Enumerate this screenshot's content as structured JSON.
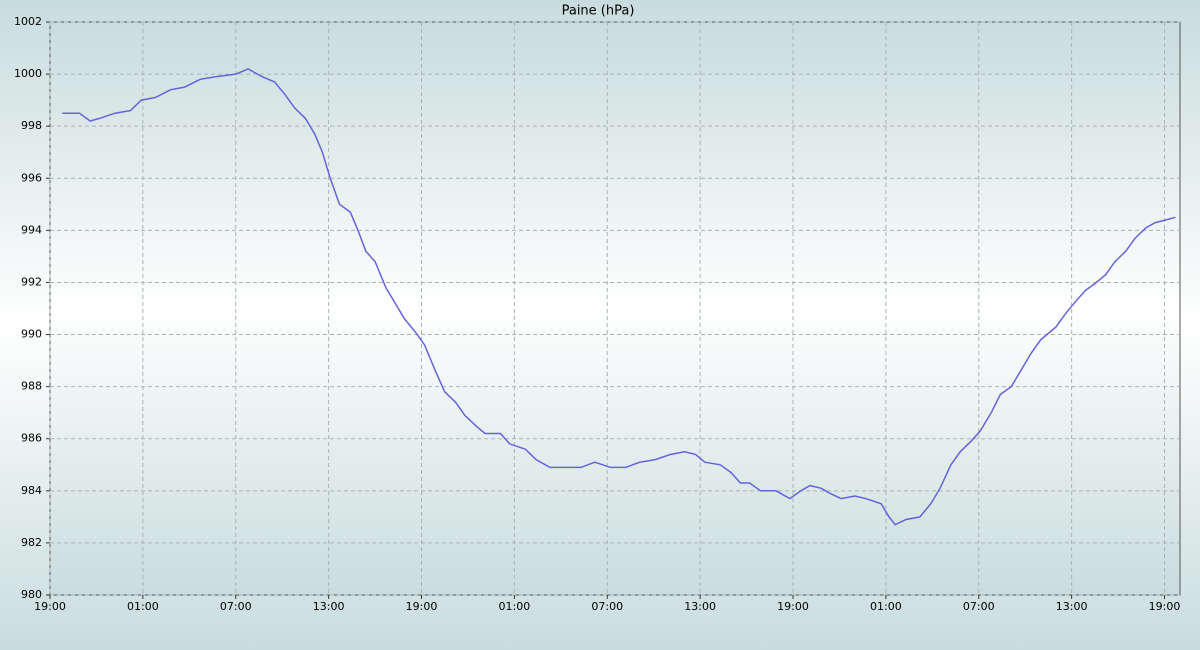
{
  "chart_data": {
    "type": "line",
    "title": "Paine (hPa)",
    "series": [
      {
        "name": "Paine",
        "color": "#6464dc",
        "x": [
          0.8,
          1.9,
          2.6,
          3.2,
          4.2,
          5.2,
          5.9,
          6.8,
          7.8,
          8.7,
          9.7,
          10.7,
          12.0,
          12.8,
          13.7,
          14.5,
          15.2,
          15.8,
          16.5,
          17.1,
          17.6,
          18.1,
          18.7,
          19.4,
          19.9,
          20.4,
          21.0,
          21.7,
          22.3,
          22.9,
          23.6,
          24.2,
          24.9,
          25.5,
          26.2,
          26.8,
          27.5,
          28.1,
          29.1,
          29.7,
          30.7,
          31.4,
          32.3,
          33.3,
          34.3,
          35.2,
          36.2,
          37.2,
          38.1,
          39.1,
          40.1,
          41.0,
          41.7,
          42.3,
          43.3,
          44.0,
          44.6,
          45.2,
          45.9,
          46.9,
          47.8,
          48.5,
          49.1,
          49.8,
          50.4,
          51.1,
          52.0,
          52.7,
          53.7,
          54.2,
          54.6,
          55.3,
          56.2,
          56.9,
          57.5,
          58.2,
          58.8,
          59.5,
          60.1,
          60.8,
          61.4,
          62.1,
          62.7,
          63.4,
          64.0,
          65.0,
          65.6,
          66.3,
          66.9,
          67.6,
          68.2,
          68.8,
          69.5,
          70.1,
          70.8,
          71.4,
          72.1,
          72.7
        ],
        "values": [
          998.5,
          998.5,
          998.2,
          998.3,
          998.5,
          998.6,
          999.0,
          999.1,
          999.4,
          999.5,
          999.8,
          999.9,
          1000.0,
          1000.2,
          999.9,
          999.7,
          999.2,
          998.7,
          998.3,
          997.7,
          997.0,
          996.0,
          995.0,
          994.7,
          994.0,
          993.2,
          992.8,
          991.8,
          991.2,
          990.6,
          990.1,
          989.6,
          988.6,
          987.8,
          987.4,
          986.9,
          986.5,
          986.2,
          986.2,
          985.8,
          985.6,
          985.2,
          984.9,
          984.9,
          984.9,
          985.1,
          984.9,
          984.9,
          985.1,
          985.2,
          985.4,
          985.5,
          985.4,
          985.1,
          985.0,
          984.7,
          984.3,
          984.3,
          984.0,
          984.0,
          983.7,
          984.0,
          984.2,
          984.1,
          983.9,
          983.7,
          983.8,
          983.7,
          983.5,
          983.0,
          982.7,
          982.9,
          983.0,
          983.5,
          984.1,
          985.0,
          985.5,
          985.9,
          986.3,
          987.0,
          987.7,
          988.0,
          988.6,
          989.3,
          989.8,
          990.3,
          990.8,
          991.3,
          991.7,
          992.0,
          992.3,
          992.8,
          993.2,
          993.7,
          994.1,
          994.3,
          994.4,
          994.5
        ]
      }
    ],
    "xlim": [
      0,
      73
    ],
    "xticks": [
      {
        "value": 0,
        "label": "19:00"
      },
      {
        "value": 6,
        "label": "01:00"
      },
      {
        "value": 12,
        "label": "07:00"
      },
      {
        "value": 18,
        "label": "13:00"
      },
      {
        "value": 24,
        "label": "19:00"
      },
      {
        "value": 30,
        "label": "01:00"
      },
      {
        "value": 36,
        "label": "07:00"
      },
      {
        "value": 42,
        "label": "13:00"
      },
      {
        "value": 48,
        "label": "19:00"
      },
      {
        "value": 54,
        "label": "01:00"
      },
      {
        "value": 60,
        "label": "07:00"
      },
      {
        "value": 66,
        "label": "13:00"
      },
      {
        "value": 72,
        "label": "19:00"
      }
    ],
    "ylim": [
      980,
      1002
    ],
    "yticks": [
      980,
      982,
      984,
      986,
      988,
      990,
      992,
      994,
      996,
      998,
      1000,
      1002
    ],
    "grid": true
  }
}
